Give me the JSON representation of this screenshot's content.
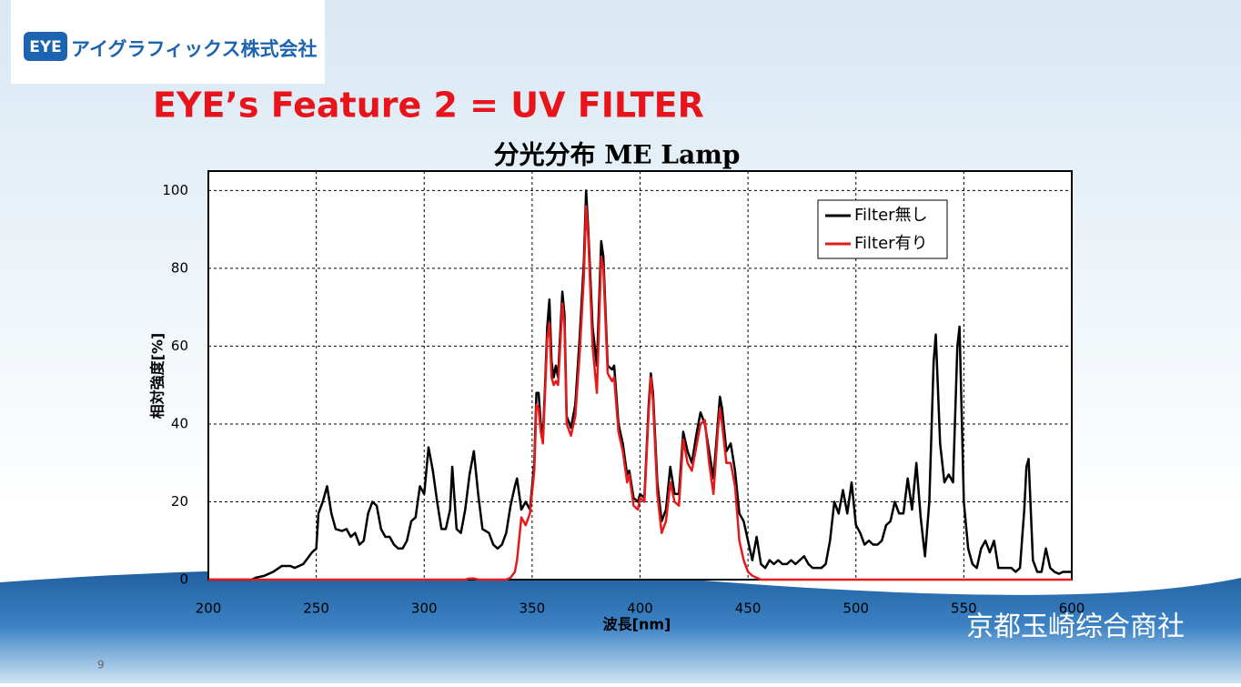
{
  "slide": {
    "logo_mark": "EYE",
    "logo_text": "アイグラフィックス株式会社",
    "title": "EYE’s Feature 2 = UV FILTER",
    "page_number": "9",
    "watermark": "京都玉崎综合商社"
  },
  "chart_data": {
    "type": "line",
    "title": "分光分布  ME Lamp",
    "x_label": "波長[nm]",
    "y_label": "相対強度[%]",
    "xlim": [
      200,
      600
    ],
    "xticks": [
      200,
      250,
      300,
      350,
      400,
      450,
      500,
      550,
      600
    ],
    "ylim": [
      0,
      105
    ],
    "yticks": [
      0,
      20,
      40,
      60,
      80,
      100
    ],
    "grid": true,
    "legend": "upper right",
    "x": [
      200,
      210,
      220,
      222,
      226,
      230,
      234,
      238,
      240,
      244,
      248,
      250,
      251,
      253,
      255,
      257,
      259,
      262,
      264,
      266,
      268,
      270,
      272,
      274,
      276,
      278,
      280,
      282,
      284,
      286,
      288,
      290,
      292,
      294,
      296,
      298,
      300,
      302,
      304,
      306,
      308,
      310,
      312,
      313,
      315,
      317,
      319,
      321,
      323,
      325,
      327,
      330,
      332,
      334,
      336,
      338,
      340,
      342,
      343,
      345,
      347,
      349,
      351,
      352,
      353,
      354,
      355,
      356,
      357,
      358,
      359,
      360,
      361,
      362,
      363,
      364,
      365,
      366,
      368,
      370,
      372,
      374,
      375,
      376,
      378,
      380,
      382,
      383,
      385,
      387,
      388,
      390,
      392,
      394,
      395,
      397,
      399,
      400,
      402,
      404,
      405,
      406,
      408,
      410,
      412,
      414,
      416,
      418,
      420,
      422,
      424,
      426,
      428,
      430,
      432,
      434,
      436,
      437,
      438,
      440,
      442,
      444,
      446,
      448,
      450,
      452,
      454,
      456,
      458,
      460,
      462,
      464,
      466,
      468,
      470,
      472,
      474,
      476,
      478,
      480,
      482,
      484,
      486,
      488,
      490,
      492,
      494,
      496,
      498,
      500,
      502,
      504,
      506,
      508,
      510,
      512,
      514,
      516,
      518,
      520,
      522,
      524,
      526,
      528,
      530,
      532,
      534,
      536,
      537,
      539,
      541,
      543,
      545,
      547,
      548,
      550,
      552,
      554,
      556,
      558,
      560,
      562,
      564,
      566,
      568,
      570,
      572,
      574,
      576,
      578,
      579,
      580,
      582,
      584,
      586,
      588,
      590,
      592,
      594,
      596,
      600
    ],
    "series": [
      {
        "name": "Filter無し",
        "color": "#000000",
        "values": [
          0,
          0,
          0,
          0.5,
          1,
          2,
          3.5,
          3.5,
          3,
          4,
          7,
          8,
          17,
          20,
          24,
          17,
          13,
          12.5,
          13,
          11,
          12,
          9,
          10,
          17,
          20,
          19,
          13,
          11,
          11,
          9,
          8,
          8,
          10,
          15,
          16,
          24,
          22,
          34,
          28,
          20,
          13,
          13,
          18,
          29,
          13,
          12,
          18,
          27,
          33,
          22,
          13,
          12,
          9,
          8,
          9,
          12,
          19,
          24,
          26,
          18,
          20,
          18,
          30,
          48,
          48,
          40,
          37,
          50,
          65,
          72,
          56,
          52,
          55,
          52,
          63,
          74,
          68,
          42,
          39,
          45,
          62,
          82,
          100,
          90,
          65,
          55,
          87,
          83,
          55,
          54,
          55,
          40,
          35,
          27,
          28,
          21,
          20,
          22,
          21,
          45,
          53,
          48,
          25,
          15,
          18,
          29,
          22,
          22,
          38,
          33,
          30,
          37,
          43,
          40,
          33,
          26,
          40,
          47,
          44,
          33,
          35,
          28,
          17,
          15,
          10,
          5,
          11,
          4,
          3,
          5,
          4,
          5,
          4,
          4,
          5,
          4,
          5,
          6,
          4,
          3,
          3,
          3,
          4,
          10,
          20,
          17,
          23,
          17,
          25,
          14,
          12,
          9,
          10,
          9,
          9,
          10,
          14,
          15,
          20,
          17,
          17,
          26,
          18,
          30,
          16,
          6,
          20,
          56,
          63,
          35,
          25,
          27,
          25,
          60,
          65,
          20,
          8,
          4,
          3,
          8,
          10,
          7,
          10,
          3,
          3,
          3,
          3,
          2,
          3,
          18,
          29,
          31,
          5,
          2,
          2,
          8,
          3,
          2,
          1.5,
          2,
          2
        ]
      },
      {
        "name": "Filter有り",
        "color": "#e41a1c",
        "values": [
          0,
          0,
          0,
          0,
          0,
          0,
          0,
          0,
          0,
          0,
          0,
          0,
          0,
          0,
          0,
          0,
          0,
          0,
          0,
          0,
          0,
          0,
          0,
          0,
          0,
          0,
          0,
          0,
          0,
          0,
          0,
          0,
          0,
          0,
          0,
          0,
          0,
          0,
          0,
          0,
          0,
          0,
          0,
          0,
          0,
          0,
          0,
          0.3,
          0.3,
          0,
          0,
          0,
          0,
          0,
          0,
          0,
          0.5,
          2,
          5,
          16,
          14,
          17,
          28,
          45,
          44,
          38,
          35,
          48,
          62,
          66,
          52,
          50,
          51,
          50,
          60,
          71,
          65,
          40,
          37,
          42,
          58,
          78,
          96,
          88,
          60,
          48,
          83,
          80,
          53,
          51,
          52,
          38,
          33,
          25,
          27,
          19,
          18,
          21,
          20,
          43,
          52,
          46,
          22,
          12,
          15,
          25,
          20,
          19,
          36,
          30,
          28,
          34,
          40,
          41,
          30,
          22,
          38,
          44,
          40,
          30,
          30,
          24,
          10,
          5,
          2,
          1,
          0.5,
          0,
          0,
          0,
          0,
          0,
          0,
          0,
          0,
          0,
          0,
          0,
          0,
          0,
          0,
          0,
          0,
          0,
          0,
          0,
          0,
          0,
          0,
          0,
          0,
          0,
          0,
          0,
          0,
          0,
          0,
          0,
          0,
          0,
          0,
          0,
          0,
          0,
          0,
          0,
          0,
          0,
          0,
          0,
          0,
          0,
          0,
          0,
          0,
          0,
          0,
          0,
          0,
          0,
          0,
          0,
          0,
          0,
          0,
          0,
          0,
          0,
          0,
          0,
          0,
          0,
          0,
          0,
          0,
          0,
          0,
          0,
          0,
          0,
          0
        ]
      }
    ]
  }
}
